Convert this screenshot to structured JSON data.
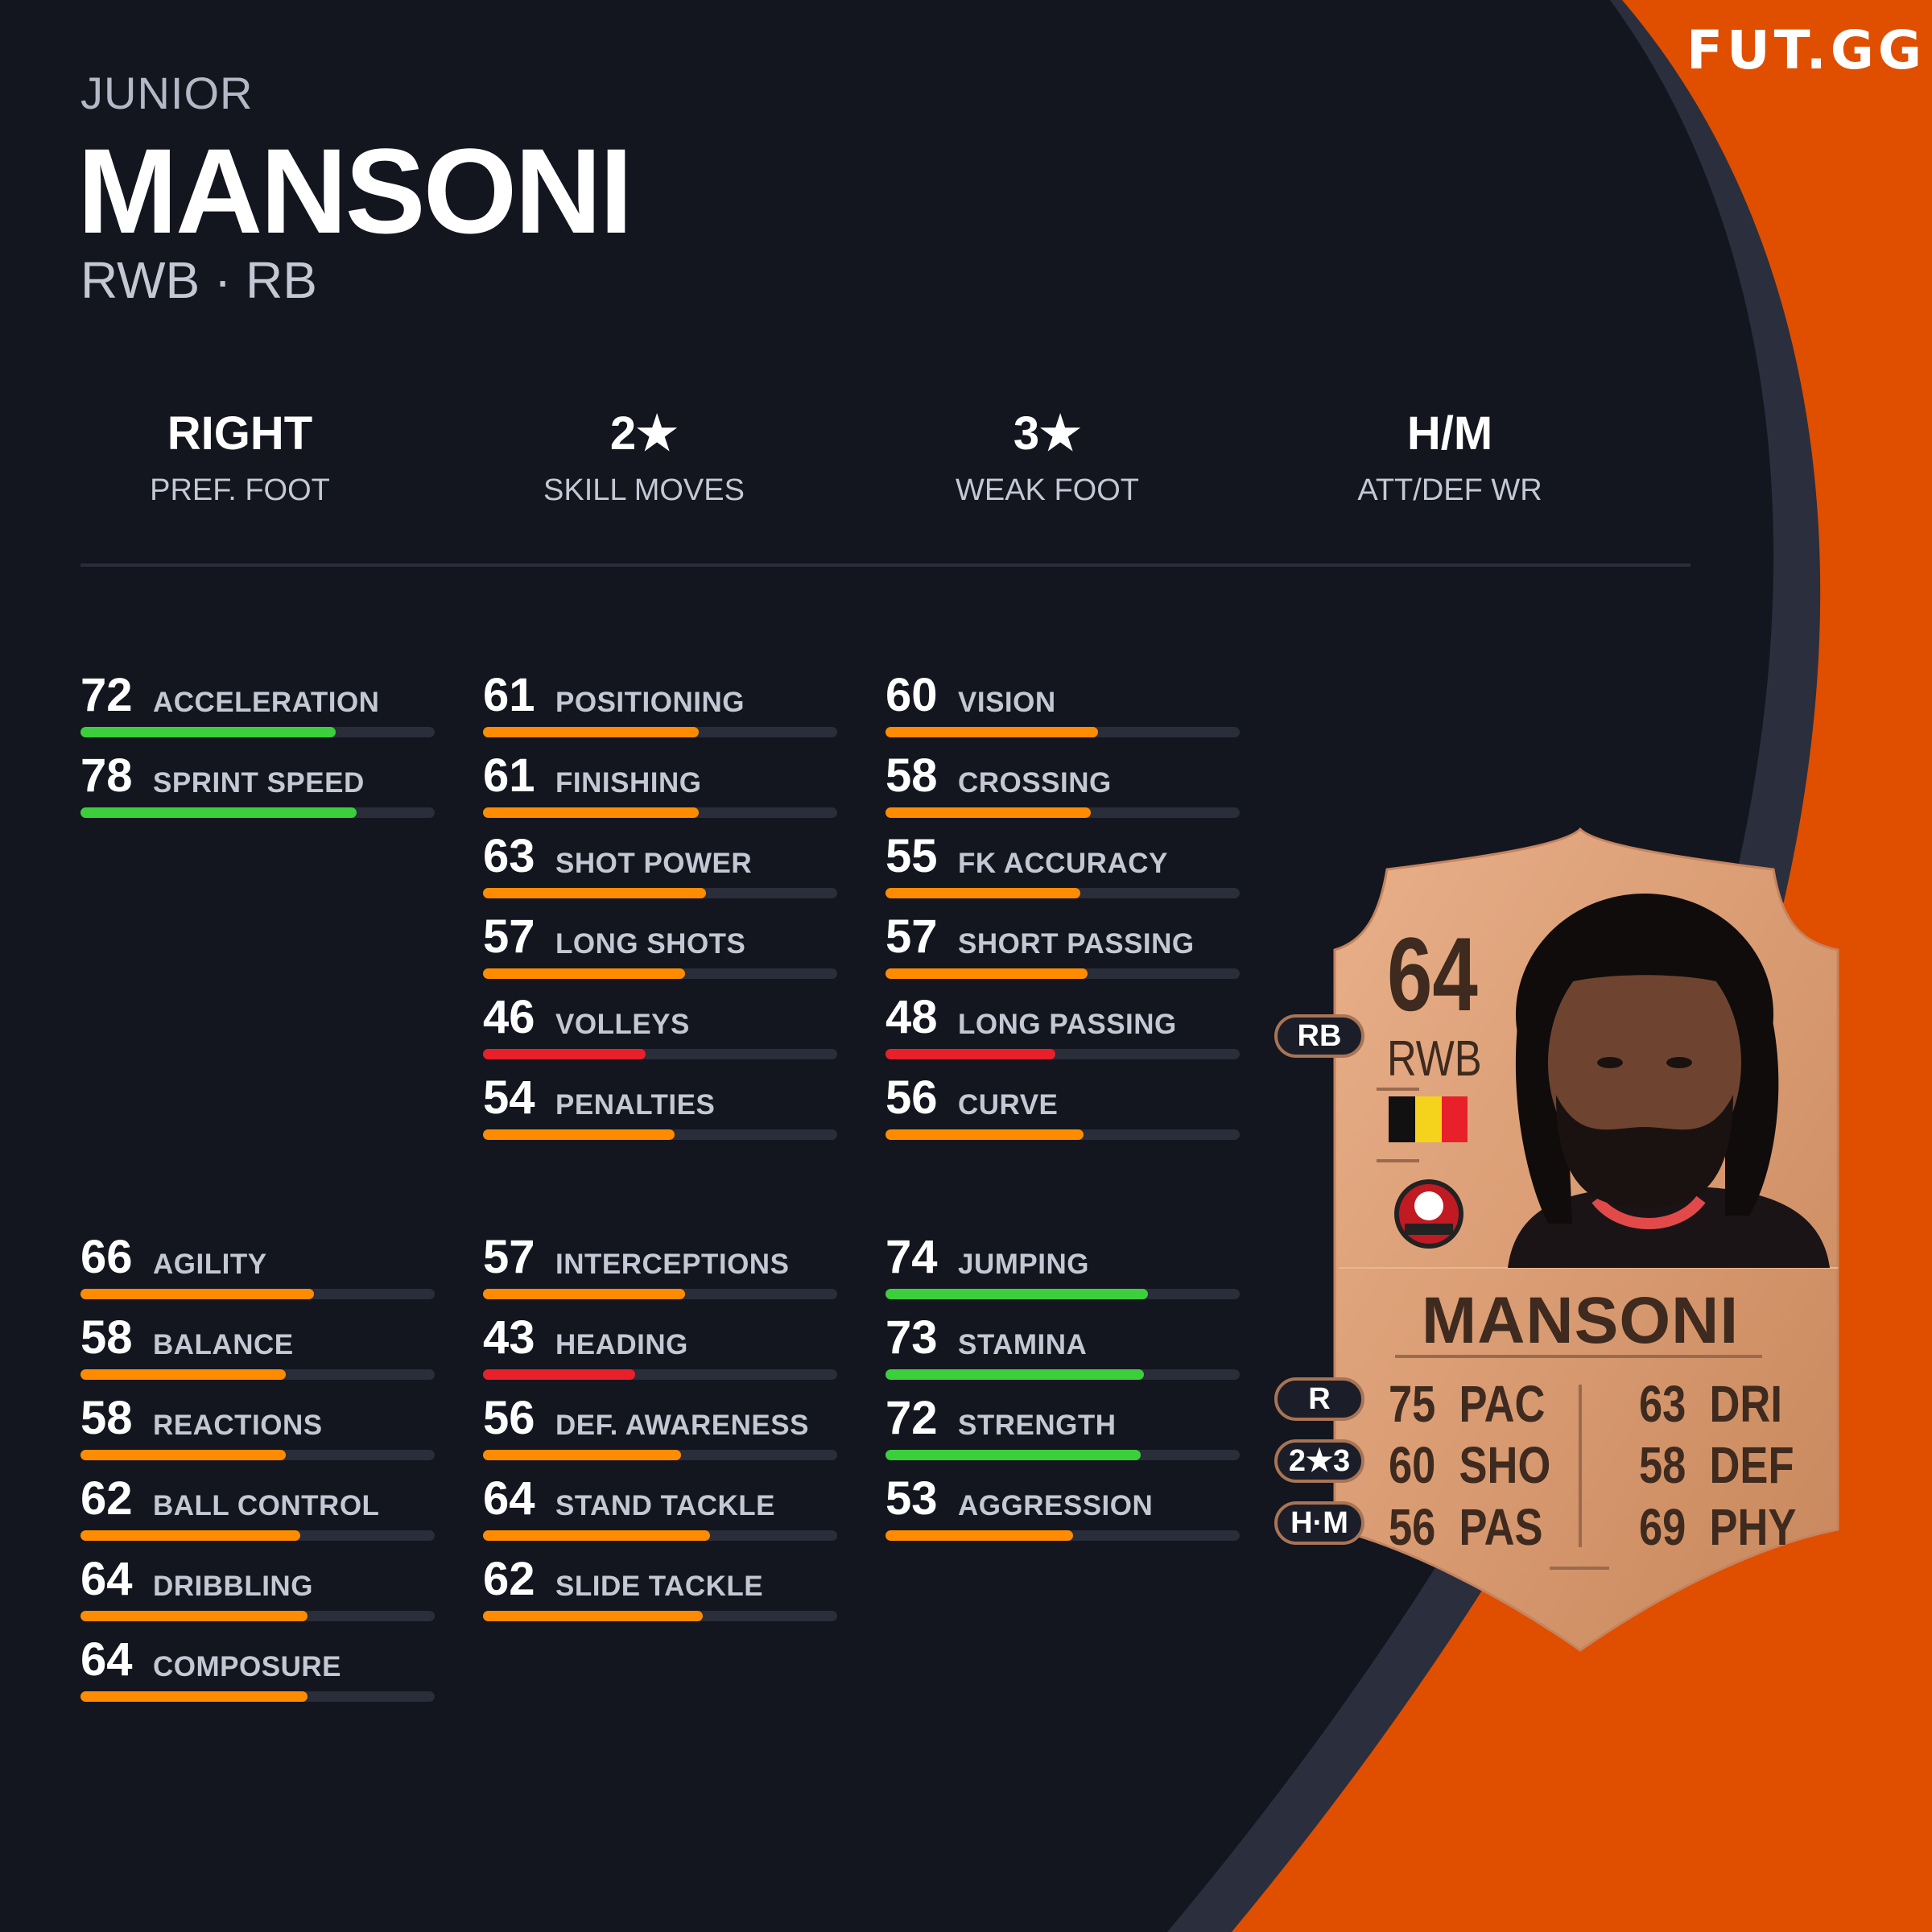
{
  "brand": {
    "logo": "FUT.GG",
    "colors": {
      "background": "#13161e",
      "accent": "#e04e00",
      "band": "#2b2e3d",
      "high": "#3ccf3c",
      "mid": "#ff8c00",
      "low": "#e8202a",
      "track": "#2a2d3a"
    }
  },
  "player": {
    "first_name": "JUNIOR",
    "last_name": "MANSONI",
    "positions": "RWB · RB"
  },
  "info": [
    {
      "value": "RIGHT",
      "label": "PREF. FOOT"
    },
    {
      "value": "2★",
      "label": "SKILL MOVES"
    },
    {
      "value": "3★",
      "label": "WEAK FOOT"
    },
    {
      "value": "H/M",
      "label": "ATT/DEF WR"
    }
  ],
  "stats": {
    "group1": [
      [
        {
          "value": 72,
          "label": "ACCELERATION"
        },
        {
          "value": 78,
          "label": "SPRINT SPEED"
        }
      ],
      [
        {
          "value": 61,
          "label": "POSITIONING"
        },
        {
          "value": 61,
          "label": "FINISHING"
        },
        {
          "value": 63,
          "label": "SHOT POWER"
        },
        {
          "value": 57,
          "label": "LONG SHOTS"
        },
        {
          "value": 46,
          "label": "VOLLEYS"
        },
        {
          "value": 54,
          "label": "PENALTIES"
        }
      ],
      [
        {
          "value": 60,
          "label": "VISION"
        },
        {
          "value": 58,
          "label": "CROSSING"
        },
        {
          "value": 55,
          "label": "FK ACCURACY"
        },
        {
          "value": 57,
          "label": "SHORT PASSING"
        },
        {
          "value": 48,
          "label": "LONG PASSING"
        },
        {
          "value": 56,
          "label": "CURVE"
        }
      ]
    ],
    "group2": [
      [
        {
          "value": 66,
          "label": "AGILITY"
        },
        {
          "value": 58,
          "label": "BALANCE"
        },
        {
          "value": 58,
          "label": "REACTIONS"
        },
        {
          "value": 62,
          "label": "BALL CONTROL"
        },
        {
          "value": 64,
          "label": "DRIBBLING"
        },
        {
          "value": 64,
          "label": "COMPOSURE"
        }
      ],
      [
        {
          "value": 57,
          "label": "INTERCEPTIONS"
        },
        {
          "value": 43,
          "label": "HEADING"
        },
        {
          "value": 56,
          "label": "DEF. AWARENESS"
        },
        {
          "value": 64,
          "label": "STAND TACKLE"
        },
        {
          "value": 62,
          "label": "SLIDE TACKLE"
        }
      ],
      [
        {
          "value": 74,
          "label": "JUMPING"
        },
        {
          "value": 73,
          "label": "STAMINA"
        },
        {
          "value": 72,
          "label": "STRENGTH"
        },
        {
          "value": 53,
          "label": "AGGRESSION"
        }
      ]
    ]
  },
  "card": {
    "rating": "64",
    "position": "RWB",
    "alt_position": "RB",
    "name": "MANSONI",
    "foot": "R",
    "skill_weak": "2★3",
    "work_rates": "H·M",
    "nation_flag": "belgium-flag",
    "club_badge": "seraing-badge",
    "stats_left": [
      {
        "value": "75",
        "label": "PAC"
      },
      {
        "value": "60",
        "label": "SHO"
      },
      {
        "value": "56",
        "label": "PAS"
      }
    ],
    "stats_right": [
      {
        "value": "63",
        "label": "DRI"
      },
      {
        "value": "58",
        "label": "DEF"
      },
      {
        "value": "69",
        "label": "PHY"
      }
    ]
  }
}
